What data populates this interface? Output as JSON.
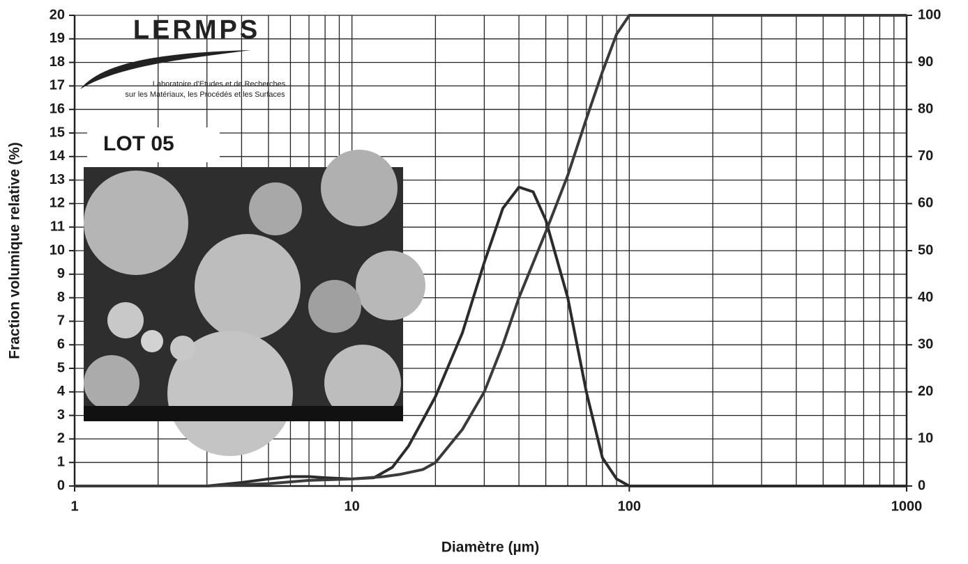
{
  "chart_data": {
    "type": "line",
    "xlabel": "Diamètre (µm)",
    "ylabel": "Fraction volumique relative (%)",
    "xlim": [
      1,
      1000
    ],
    "xticks": [
      1,
      10,
      100,
      1000
    ],
    "xscale": "log",
    "ylim": [
      0,
      20
    ],
    "yticks": [
      0,
      1,
      2,
      3,
      4,
      5,
      6,
      7,
      8,
      9,
      10,
      11,
      12,
      13,
      14,
      15,
      16,
      17,
      18,
      19,
      20
    ],
    "y2lim": [
      0,
      100
    ],
    "y2ticks": [
      0,
      10,
      20,
      30,
      40,
      50,
      60,
      70,
      80,
      90,
      100
    ],
    "grid": true,
    "series": [
      {
        "color": "#2b2b2b",
        "axis": "y",
        "x": [
          1,
          2,
          3,
          4,
          5,
          6,
          7,
          8,
          10,
          12,
          14,
          16,
          18,
          20,
          25,
          30,
          35,
          40,
          45,
          50,
          60,
          70,
          80,
          90,
          100,
          200,
          1000
        ],
        "values": [
          0,
          0,
          0,
          0.15,
          0.3,
          0.4,
          0.4,
          0.35,
          0.3,
          0.35,
          0.8,
          1.7,
          2.8,
          3.8,
          6.5,
          9.5,
          11.8,
          12.7,
          12.5,
          11.3,
          8,
          4,
          1.2,
          0.3,
          0,
          0,
          0
        ]
      },
      {
        "color": "#3a3a3a",
        "axis": "y2",
        "x": [
          1,
          3,
          5,
          7,
          10,
          13,
          15,
          18,
          20,
          25,
          30,
          35,
          40,
          50,
          60,
          70,
          80,
          90,
          100,
          1000
        ],
        "values": [
          0,
          0,
          0.5,
          1.2,
          1.5,
          2,
          2.5,
          3.5,
          5,
          12,
          20,
          30,
          40,
          54,
          66,
          78,
          88,
          96,
          100,
          100
        ]
      }
    ],
    "annotations": {
      "logo": "LERMPS",
      "lab_line1": "Laboratoire d'Etudes et de Recherches",
      "lab_line2": "sur les Matériaux, les Procédés et les Surfaces",
      "lot": "LOT 05"
    }
  }
}
